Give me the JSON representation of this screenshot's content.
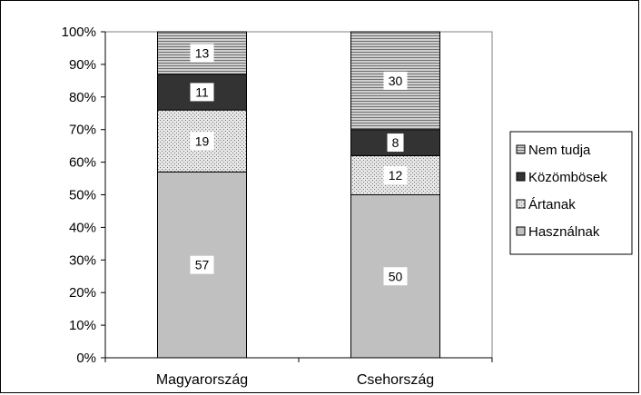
{
  "chart_data": {
    "type": "bar",
    "stacked": true,
    "percent": true,
    "categories": [
      "Magyarország",
      "Csehország"
    ],
    "series": [
      {
        "name": "Használnak",
        "values": [
          57,
          50
        ],
        "color": "#c0c0c0",
        "pattern": "solid"
      },
      {
        "name": "Ártanak",
        "values": [
          19,
          12
        ],
        "color": "#d9d9d9",
        "pattern": "dots"
      },
      {
        "name": "Közömbösek",
        "values": [
          11,
          8
        ],
        "color": "#333333",
        "pattern": "solid"
      },
      {
        "name": "Nem tudja",
        "values": [
          13,
          30
        ],
        "color": "#a0a0a0",
        "pattern": "hlines"
      }
    ],
    "y_ticks": [
      "0%",
      "10%",
      "20%",
      "30%",
      "40%",
      "50%",
      "60%",
      "70%",
      "80%",
      "90%",
      "100%"
    ],
    "ylim": [
      0,
      100
    ],
    "grid": false,
    "legend_position": "right",
    "legend_order": [
      "Nem tudja",
      "Közömbösek",
      "Ártanak",
      "Használnak"
    ]
  }
}
